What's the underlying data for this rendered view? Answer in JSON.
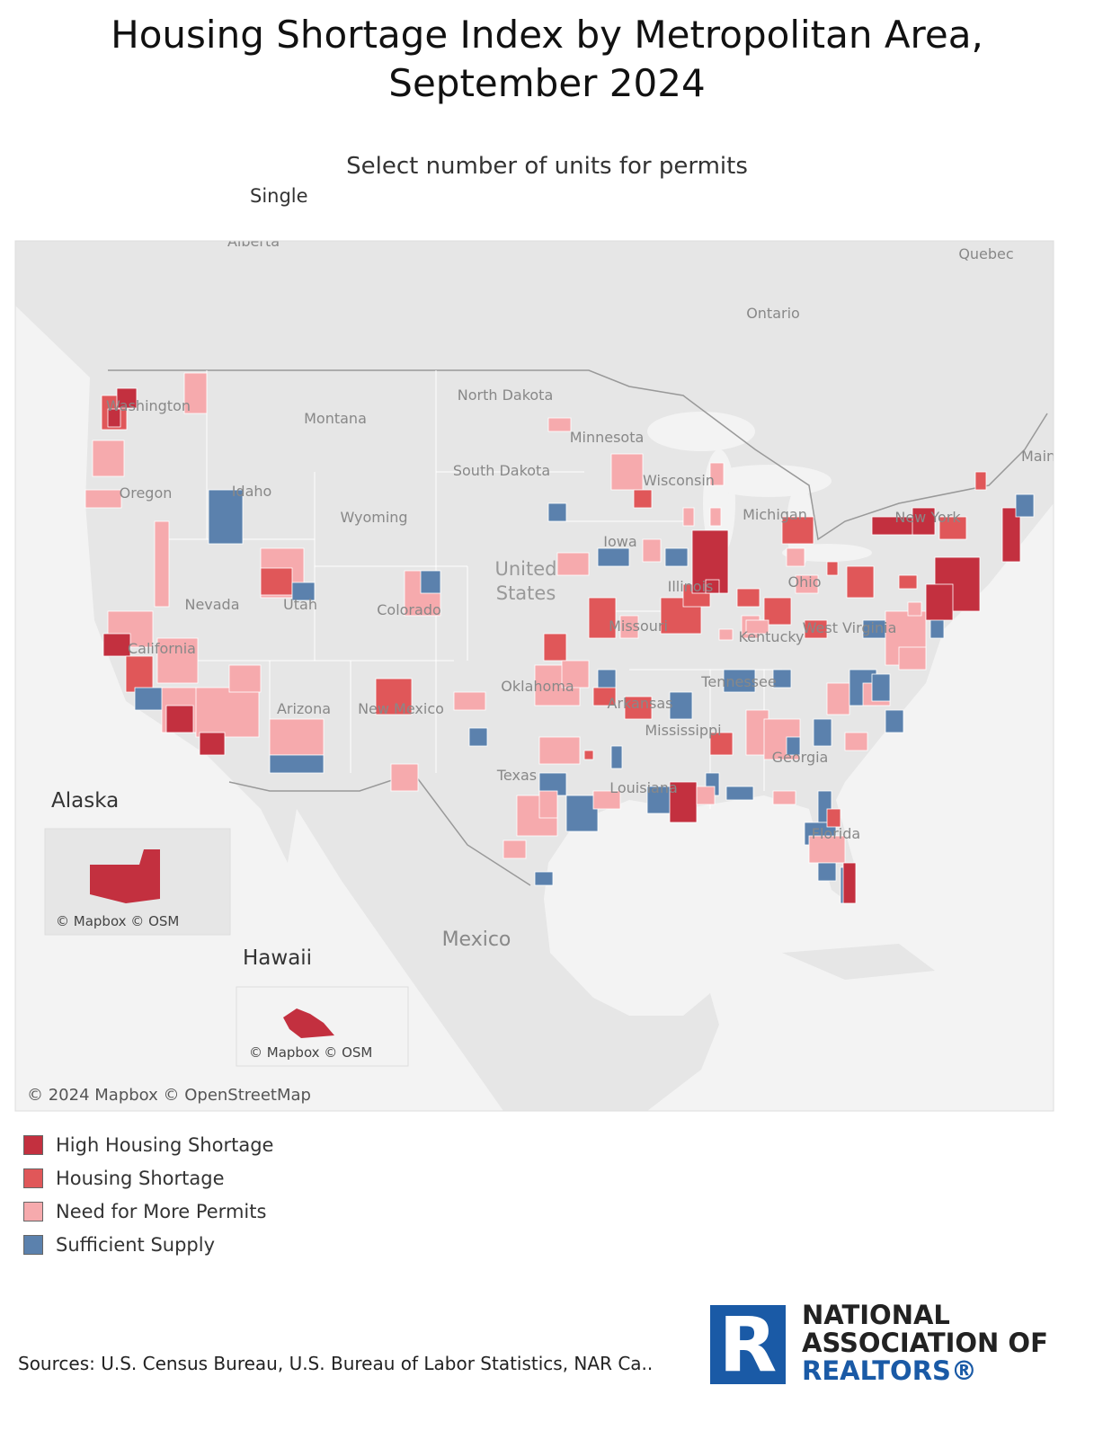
{
  "title_lines": [
    "Housing Shortage Index by Metropolitan Area,",
    "September 2024"
  ],
  "filter": {
    "label": "Select number of units for permits",
    "value": "Single"
  },
  "map": {
    "labels": [
      "Alberta",
      "Quebec",
      "Ontario",
      "Washington",
      "Montana",
      "North Dakota",
      "Minnesota",
      "South Dakota",
      "Wisconsin",
      "Michigan",
      "New York",
      "Maine",
      "Oregon",
      "Idaho",
      "Wyoming",
      "Iowa",
      "United States",
      "Nevada",
      "Utah",
      "Colorado",
      "Illinois",
      "Ohio",
      "California",
      "Missouri",
      "West Virginia",
      "Kentucky",
      "Oklahoma",
      "Arkansas",
      "Tennessee",
      "Arizona",
      "New Mexico",
      "Mississippi",
      "Georgia",
      "Texas",
      "Louisiana",
      "Florida",
      "Mexico"
    ],
    "insets": [
      {
        "title": "Alaska",
        "credit": "© Mapbox © OSM"
      },
      {
        "title": "Hawaii",
        "credit": "© Mapbox © OSM"
      }
    ],
    "credit": "© 2024 Mapbox © OpenStreetMap"
  },
  "legend": [
    {
      "label": "High Housing Shortage",
      "color": "#c3303f"
    },
    {
      "label": "Housing Shortage",
      "color": "#e05759"
    },
    {
      "label": "Need for More Permits",
      "color": "#f6aaad"
    },
    {
      "label": "Sufficient Supply",
      "color": "#5b81ad"
    }
  ],
  "source": "Sources: U.S. Census Bureau, U.S. Bureau of Labor Statistics, NAR Ca..",
  "logo": {
    "mark": "R",
    "lines": [
      "NATIONAL",
      "ASSOCIATION OF",
      "REALTORS®"
    ]
  }
}
